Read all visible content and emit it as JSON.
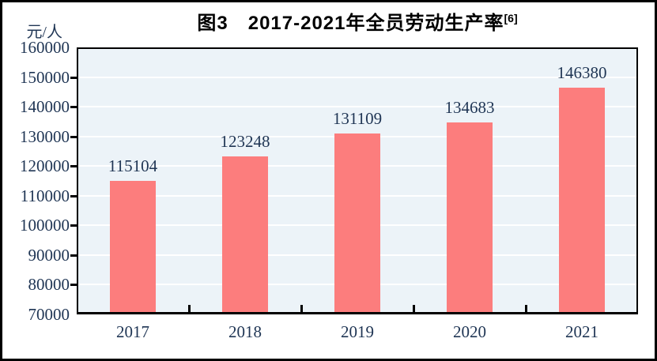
{
  "title": {
    "text": "图3　2017-2021年全员劳动生产率",
    "superscript": "[6]"
  },
  "chart_data": {
    "type": "bar",
    "title": "图3 2017-2021年全员劳动生产率[6]",
    "categories": [
      "2017",
      "2018",
      "2019",
      "2020",
      "2021"
    ],
    "values": [
      115104,
      123248,
      131109,
      134683,
      146380
    ],
    "value_labels": [
      "115104",
      "123248",
      "131109",
      "134683",
      "146380"
    ],
    "xlabel": "",
    "ylabel": "元/人",
    "ylim": [
      70000,
      160000
    ],
    "ytick_step": 10000,
    "ytick_labels": [
      "160000",
      "150000",
      "140000",
      "130000",
      "120000",
      "110000",
      "100000",
      "90000",
      "80000",
      "70000"
    ],
    "grid": true,
    "legend": false,
    "colors": {
      "bar": "#fc7d7d",
      "plot_background": "#ecf3f8",
      "gridline": "#ffffff",
      "axis": "#000000",
      "tick_text": "#1f3554",
      "title_text": "#000000"
    }
  }
}
